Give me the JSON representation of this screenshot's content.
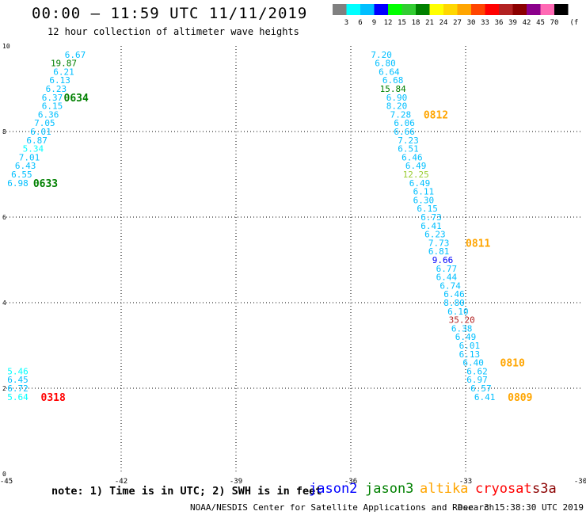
{
  "header": {
    "title": "00:00 – 11:59 UTC 11/11/2019",
    "subtitle": "12 hour collection of altimeter wave heights"
  },
  "colorbar": {
    "unit": "(ft)",
    "levels": [
      "3",
      "6",
      "9",
      "12",
      "15",
      "18",
      "21",
      "24",
      "27",
      "30",
      "33",
      "36",
      "39",
      "42",
      "45",
      "70"
    ],
    "colors": [
      "#808080",
      "#00ffff",
      "#00bfff",
      "#0000ff",
      "#00ff00",
      "#32cd32",
      "#008000",
      "#ffff00",
      "#ffd700",
      "#ffa500",
      "#ff4500",
      "#ff0000",
      "#b22222",
      "#8b0000",
      "#8b008b",
      "#ff69b4",
      "#000000"
    ]
  },
  "chart_data": {
    "type": "scatter",
    "xlim": [
      -45,
      -30
    ],
    "ylim": [
      0,
      10
    ],
    "x_ticks": [
      "-45",
      "-42",
      "-39",
      "-36",
      "-33",
      "-30"
    ],
    "y_ticks": [
      "0",
      "2",
      "4",
      "6",
      "8",
      "10"
    ],
    "grid": true,
    "series": [
      {
        "group": "west-top",
        "points": [
          {
            "x": -43.2,
            "y": 9.8,
            "label": "6.67",
            "color": "#00bfff"
          },
          {
            "x": -43.5,
            "y": 9.6,
            "label": "19.87",
            "color": "#008000"
          },
          {
            "x": -43.5,
            "y": 9.4,
            "label": "6.21",
            "color": "#00bfff"
          },
          {
            "x": -43.6,
            "y": 9.2,
            "label": "6.13",
            "color": "#00bfff"
          },
          {
            "x": -43.7,
            "y": 9.0,
            "label": "6.23",
            "color": "#00bfff"
          },
          {
            "x": -43.8,
            "y": 8.8,
            "label": "6.37",
            "color": "#00bfff"
          },
          {
            "x": -43.8,
            "y": 8.6,
            "label": "6.15",
            "color": "#00bfff"
          },
          {
            "x": -43.9,
            "y": 8.4,
            "label": "6.36",
            "color": "#00bfff"
          },
          {
            "x": -44.0,
            "y": 8.2,
            "label": "7.05",
            "color": "#00bfff"
          },
          {
            "x": -44.1,
            "y": 8.0,
            "label": "6.01",
            "color": "#00bfff"
          },
          {
            "x": -44.2,
            "y": 7.8,
            "label": "6.87",
            "color": "#00bfff"
          },
          {
            "x": -44.3,
            "y": 7.6,
            "label": "5.34",
            "color": "#00ffff"
          },
          {
            "x": -44.4,
            "y": 7.4,
            "label": "7.01",
            "color": "#00bfff"
          },
          {
            "x": -44.5,
            "y": 7.2,
            "label": "6.43",
            "color": "#00bfff"
          },
          {
            "x": -44.6,
            "y": 7.0,
            "label": "6.55",
            "color": "#00bfff"
          },
          {
            "x": -44.7,
            "y": 6.8,
            "label": "6.98",
            "color": "#00bfff"
          }
        ]
      },
      {
        "group": "west-bottom",
        "points": [
          {
            "x": -44.7,
            "y": 2.4,
            "label": "5.46",
            "color": "#00ffff"
          },
          {
            "x": -44.7,
            "y": 2.2,
            "label": "6.45",
            "color": "#00bfff"
          },
          {
            "x": -44.7,
            "y": 2.0,
            "label": "6.72",
            "color": "#00bfff"
          },
          {
            "x": -44.7,
            "y": 1.8,
            "label": "5.64",
            "color": "#00ffff"
          }
        ]
      },
      {
        "group": "east",
        "points": [
          {
            "x": -35.2,
            "y": 9.8,
            "label": "7.20",
            "color": "#00bfff"
          },
          {
            "x": -35.1,
            "y": 9.6,
            "label": "6.80",
            "color": "#00bfff"
          },
          {
            "x": -35.0,
            "y": 9.4,
            "label": "6.64",
            "color": "#00bfff"
          },
          {
            "x": -34.9,
            "y": 9.2,
            "label": "6.68",
            "color": "#00bfff"
          },
          {
            "x": -34.9,
            "y": 9.0,
            "label": "15.84",
            "color": "#008000"
          },
          {
            "x": -34.8,
            "y": 8.8,
            "label": "6.90",
            "color": "#00bfff"
          },
          {
            "x": -34.8,
            "y": 8.6,
            "label": "8.20",
            "color": "#00bfff"
          },
          {
            "x": -34.7,
            "y": 8.4,
            "label": "7.28",
            "color": "#00bfff"
          },
          {
            "x": -34.6,
            "y": 8.2,
            "label": "6.06",
            "color": "#00bfff"
          },
          {
            "x": -34.6,
            "y": 8.0,
            "label": "6.66",
            "color": "#00bfff"
          },
          {
            "x": -34.5,
            "y": 7.8,
            "label": "7.23",
            "color": "#00bfff"
          },
          {
            "x": -34.5,
            "y": 7.6,
            "label": "6.51",
            "color": "#00bfff"
          },
          {
            "x": -34.4,
            "y": 7.4,
            "label": "6.46",
            "color": "#00bfff"
          },
          {
            "x": -34.3,
            "y": 7.2,
            "label": "6.49",
            "color": "#00bfff"
          },
          {
            "x": -34.3,
            "y": 7.0,
            "label": "12.25",
            "color": "#9acd32"
          },
          {
            "x": -34.2,
            "y": 6.8,
            "label": "6.49",
            "color": "#00bfff"
          },
          {
            "x": -34.1,
            "y": 6.6,
            "label": "6.11",
            "color": "#00bfff"
          },
          {
            "x": -34.1,
            "y": 6.4,
            "label": "6.30",
            "color": "#00bfff"
          },
          {
            "x": -34.0,
            "y": 6.2,
            "label": "6.15",
            "color": "#00bfff"
          },
          {
            "x": -33.9,
            "y": 6.0,
            "label": "6.73",
            "color": "#00bfff"
          },
          {
            "x": -33.9,
            "y": 5.8,
            "label": "6.41",
            "color": "#00bfff"
          },
          {
            "x": -33.8,
            "y": 5.6,
            "label": "6.23",
            "color": "#00bfff"
          },
          {
            "x": -33.7,
            "y": 5.4,
            "label": "7.73",
            "color": "#00bfff"
          },
          {
            "x": -33.7,
            "y": 5.2,
            "label": "6.81",
            "color": "#00bfff"
          },
          {
            "x": -33.6,
            "y": 5.0,
            "label": "9.66",
            "color": "#0000ff"
          },
          {
            "x": -33.5,
            "y": 4.8,
            "label": "6.77",
            "color": "#00bfff"
          },
          {
            "x": -33.5,
            "y": 4.6,
            "label": "6.44",
            "color": "#00bfff"
          },
          {
            "x": -33.4,
            "y": 4.4,
            "label": "6.74",
            "color": "#00bfff"
          },
          {
            "x": -33.3,
            "y": 4.2,
            "label": "6.46",
            "color": "#00bfff"
          },
          {
            "x": -33.3,
            "y": 4.0,
            "label": "8.80",
            "color": "#00bfff"
          },
          {
            "x": -33.2,
            "y": 3.8,
            "label": "6.10",
            "color": "#00bfff"
          },
          {
            "x": -33.1,
            "y": 3.6,
            "label": "35.20",
            "color": "#b22222"
          },
          {
            "x": -33.1,
            "y": 3.4,
            "label": "6.38",
            "color": "#00bfff"
          },
          {
            "x": -33.0,
            "y": 3.2,
            "label": "6.49",
            "color": "#00bfff"
          },
          {
            "x": -32.9,
            "y": 3.0,
            "label": "6.01",
            "color": "#00bfff"
          },
          {
            "x": -32.9,
            "y": 2.8,
            "label": "6.13",
            "color": "#00bfff"
          },
          {
            "x": -32.8,
            "y": 2.6,
            "label": "6.40",
            "color": "#00bfff"
          },
          {
            "x": -32.7,
            "y": 2.4,
            "label": "6.62",
            "color": "#00bfff"
          },
          {
            "x": -32.7,
            "y": 2.2,
            "label": "6.97",
            "color": "#00bfff"
          },
          {
            "x": -32.6,
            "y": 2.0,
            "label": "6.57",
            "color": "#00bfff"
          },
          {
            "x": -32.5,
            "y": 1.8,
            "label": "6.41",
            "color": "#00bfff"
          }
        ]
      }
    ],
    "annotations": [
      {
        "text": "0634",
        "x": -43.5,
        "y": 8.8,
        "color": "#008000"
      },
      {
        "text": "0633",
        "x": -44.3,
        "y": 6.8,
        "color": "#008000"
      },
      {
        "text": "0318",
        "x": -44.1,
        "y": 1.8,
        "color": "#ff0000"
      },
      {
        "text": "0812",
        "x": -34.1,
        "y": 8.4,
        "color": "#ffa500"
      },
      {
        "text": "0811",
        "x": -33.0,
        "y": 5.4,
        "color": "#ffa500"
      },
      {
        "text": "0810",
        "x": -32.1,
        "y": 2.6,
        "color": "#ffa500"
      },
      {
        "text": "0809",
        "x": -31.9,
        "y": 1.8,
        "color": "#ffa500"
      }
    ]
  },
  "note": "note: 1) Time is in UTC; 2) SWH is in feet",
  "satellites": [
    {
      "name": "jason2",
      "color": "#0000ff"
    },
    {
      "name": "jason3",
      "color": "#008000"
    },
    {
      "name": "altika",
      "color": "#ffa500"
    },
    {
      "name": "cryosat",
      "color": "#ff0000"
    },
    {
      "name": "s3a",
      "color": "#8b0000"
    }
  ],
  "footer": {
    "agency": "NOAA/NESDIS Center for Satellite Applications and Research",
    "date": "Dec  3 15:38:30 UTC 2019"
  }
}
